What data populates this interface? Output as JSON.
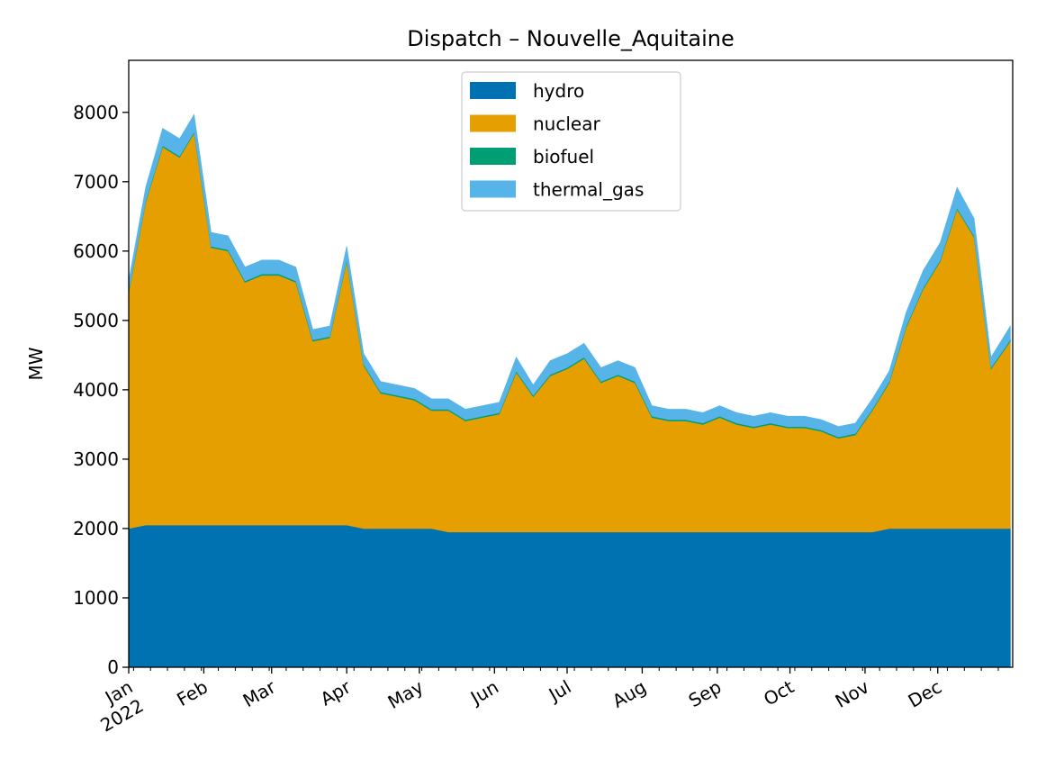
{
  "chart_data": {
    "type": "area",
    "stacked": true,
    "title": "Dispatch – Nouvelle_Aquitaine",
    "xlabel": "",
    "ylabel": "MW",
    "ylim": [
      0,
      8750
    ],
    "yticks": [
      0,
      1000,
      2000,
      3000,
      4000,
      5000,
      6000,
      7000,
      8000
    ],
    "xrange": [
      "2022-01-01",
      "2022-12-31"
    ],
    "xticks": [
      {
        "date": "2022-01-01",
        "label": "Jan",
        "label2": "2022"
      },
      {
        "date": "2022-02-01",
        "label": "Feb"
      },
      {
        "date": "2022-03-01",
        "label": "Mar"
      },
      {
        "date": "2022-04-01",
        "label": "Apr"
      },
      {
        "date": "2022-05-01",
        "label": "May"
      },
      {
        "date": "2022-06-01",
        "label": "Jun"
      },
      {
        "date": "2022-07-01",
        "label": "Jul"
      },
      {
        "date": "2022-08-01",
        "label": "Aug"
      },
      {
        "date": "2022-09-01",
        "label": "Sep"
      },
      {
        "date": "2022-10-01",
        "label": "Oct"
      },
      {
        "date": "2022-11-01",
        "label": "Nov"
      },
      {
        "date": "2022-12-01",
        "label": "Dec"
      }
    ],
    "legend_position": "upper-center",
    "legend": [
      "hydro",
      "nuclear",
      "biofuel",
      "thermal_gas"
    ],
    "resolution": "approx. weekly (hourly data with daily oscillation)",
    "x": [
      "2022-01-01",
      "2022-01-08",
      "2022-01-15",
      "2022-01-22",
      "2022-01-28",
      "2022-02-04",
      "2022-02-11",
      "2022-02-18",
      "2022-02-25",
      "2022-03-04",
      "2022-03-11",
      "2022-03-18",
      "2022-03-25",
      "2022-04-01",
      "2022-04-08",
      "2022-04-15",
      "2022-04-22",
      "2022-04-29",
      "2022-05-06",
      "2022-05-13",
      "2022-05-20",
      "2022-05-27",
      "2022-06-03",
      "2022-06-10",
      "2022-06-17",
      "2022-06-24",
      "2022-07-01",
      "2022-07-08",
      "2022-07-15",
      "2022-07-22",
      "2022-07-29",
      "2022-08-05",
      "2022-08-12",
      "2022-08-19",
      "2022-08-26",
      "2022-09-02",
      "2022-09-09",
      "2022-09-16",
      "2022-09-23",
      "2022-09-30",
      "2022-10-07",
      "2022-10-14",
      "2022-10-21",
      "2022-10-28",
      "2022-11-04",
      "2022-11-11",
      "2022-11-18",
      "2022-11-25",
      "2022-12-02",
      "2022-12-09",
      "2022-12-16",
      "2022-12-23",
      "2022-12-31"
    ],
    "series": [
      {
        "name": "hydro",
        "color": "#0072b2",
        "values": [
          2000,
          2050,
          2050,
          2050,
          2050,
          2050,
          2050,
          2050,
          2050,
          2050,
          2050,
          2050,
          2050,
          2050,
          2000,
          2000,
          2000,
          2000,
          2000,
          1950,
          1950,
          1950,
          1950,
          1950,
          1950,
          1950,
          1950,
          1950,
          1950,
          1950,
          1950,
          1950,
          1950,
          1950,
          1950,
          1950,
          1950,
          1950,
          1950,
          1950,
          1950,
          1950,
          1950,
          1950,
          1950,
          2000,
          2000,
          2000,
          2000,
          2000,
          2000,
          2000,
          2000
        ]
      },
      {
        "name": "nuclear",
        "color": "#e69f00",
        "values": [
          3400,
          4650,
          5450,
          5300,
          5650,
          4000,
          3950,
          3500,
          3600,
          3600,
          3500,
          2650,
          2700,
          3800,
          2350,
          1950,
          1900,
          1850,
          1700,
          1750,
          1600,
          1650,
          1700,
          2300,
          1950,
          2250,
          2350,
          2500,
          2150,
          2250,
          2150,
          1650,
          1600,
          1600,
          1550,
          1650,
          1550,
          1500,
          1550,
          1500,
          1500,
          1450,
          1350,
          1400,
          1750,
          2100,
          2900,
          3450,
          3850,
          4600,
          4200,
          2300,
          2700
        ]
      },
      {
        "name": "biofuel",
        "color": "#009e73",
        "values": [
          20,
          20,
          20,
          20,
          20,
          20,
          20,
          20,
          20,
          20,
          20,
          20,
          20,
          20,
          20,
          20,
          20,
          20,
          20,
          20,
          20,
          20,
          20,
          20,
          20,
          20,
          20,
          20,
          20,
          20,
          20,
          20,
          20,
          20,
          20,
          20,
          20,
          20,
          20,
          20,
          20,
          20,
          20,
          20,
          20,
          20,
          20,
          20,
          20,
          20,
          20,
          20,
          20
        ]
      },
      {
        "name": "thermal_gas",
        "color": "#56b4e9",
        "values": [
          150,
          200,
          250,
          250,
          250,
          200,
          200,
          200,
          200,
          200,
          200,
          150,
          150,
          200,
          150,
          150,
          150,
          150,
          150,
          150,
          150,
          150,
          150,
          200,
          150,
          200,
          200,
          200,
          200,
          200,
          200,
          150,
          150,
          150,
          150,
          150,
          150,
          150,
          150,
          150,
          150,
          150,
          150,
          150,
          150,
          150,
          200,
          250,
          250,
          300,
          250,
          150,
          200
        ]
      }
    ]
  }
}
